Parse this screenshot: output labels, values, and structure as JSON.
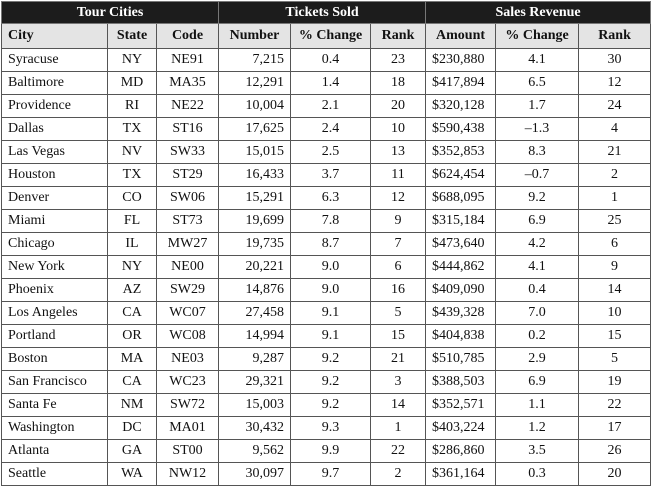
{
  "table": {
    "groups": [
      "Tour Cities",
      "Tickets Sold",
      "Sales Revenue"
    ],
    "columns": [
      "City",
      "State",
      "Code",
      "Number",
      "% Change",
      "Rank",
      "Amount",
      "% Change",
      "Rank"
    ],
    "rows": [
      [
        "Syracuse",
        "NY",
        "NE91",
        "7,215",
        "0.4",
        "23",
        "$230,880",
        "4.1",
        "30"
      ],
      [
        "Baltimore",
        "MD",
        "MA35",
        "12,291",
        "1.4",
        "18",
        "$417,894",
        "6.5",
        "12"
      ],
      [
        "Providence",
        "RI",
        "NE22",
        "10,004",
        "2.1",
        "20",
        "$320,128",
        "1.7",
        "24"
      ],
      [
        "Dallas",
        "TX",
        "ST16",
        "17,625",
        "2.4",
        "10",
        "$590,438",
        "–1.3",
        "4"
      ],
      [
        "Las Vegas",
        "NV",
        "SW33",
        "15,015",
        "2.5",
        "13",
        "$352,853",
        "8.3",
        "21"
      ],
      [
        "Houston",
        "TX",
        "ST29",
        "16,433",
        "3.7",
        "11",
        "$624,454",
        "–0.7",
        "2"
      ],
      [
        "Denver",
        "CO",
        "SW06",
        "15,291",
        "6.3",
        "12",
        "$688,095",
        "9.2",
        "1"
      ],
      [
        "Miami",
        "FL",
        "ST73",
        "19,699",
        "7.8",
        "9",
        "$315,184",
        "6.9",
        "25"
      ],
      [
        "Chicago",
        "IL",
        "MW27",
        "19,735",
        "8.7",
        "7",
        "$473,640",
        "4.2",
        "6"
      ],
      [
        "New York",
        "NY",
        "NE00",
        "20,221",
        "9.0",
        "6",
        "$444,862",
        "4.1",
        "9"
      ],
      [
        "Phoenix",
        "AZ",
        "SW29",
        "14,876",
        "9.0",
        "16",
        "$409,090",
        "0.4",
        "14"
      ],
      [
        "Los Angeles",
        "CA",
        "WC07",
        "27,458",
        "9.1",
        "5",
        "$439,328",
        "7.0",
        "10"
      ],
      [
        "Portland",
        "OR",
        "WC08",
        "14,994",
        "9.1",
        "15",
        "$404,838",
        "0.2",
        "15"
      ],
      [
        "Boston",
        "MA",
        "NE03",
        "9,287",
        "9.2",
        "21",
        "$510,785",
        "2.9",
        "5"
      ],
      [
        "San Francisco",
        "CA",
        "WC23",
        "29,321",
        "9.2",
        "3",
        "$388,503",
        "6.9",
        "19"
      ],
      [
        "Santa Fe",
        "NM",
        "SW72",
        "15,003",
        "9.2",
        "14",
        "$352,571",
        "1.1",
        "22"
      ],
      [
        "Washington",
        "DC",
        "MA01",
        "30,432",
        "9.3",
        "1",
        "$403,224",
        "1.2",
        "17"
      ],
      [
        "Atlanta",
        "GA",
        "ST00",
        "9,562",
        "9.9",
        "22",
        "$286,860",
        "3.5",
        "26"
      ],
      [
        "Seattle",
        "WA",
        "NW12",
        "30,097",
        "9.7",
        "2",
        "$361,164",
        "0.3",
        "20"
      ]
    ]
  }
}
